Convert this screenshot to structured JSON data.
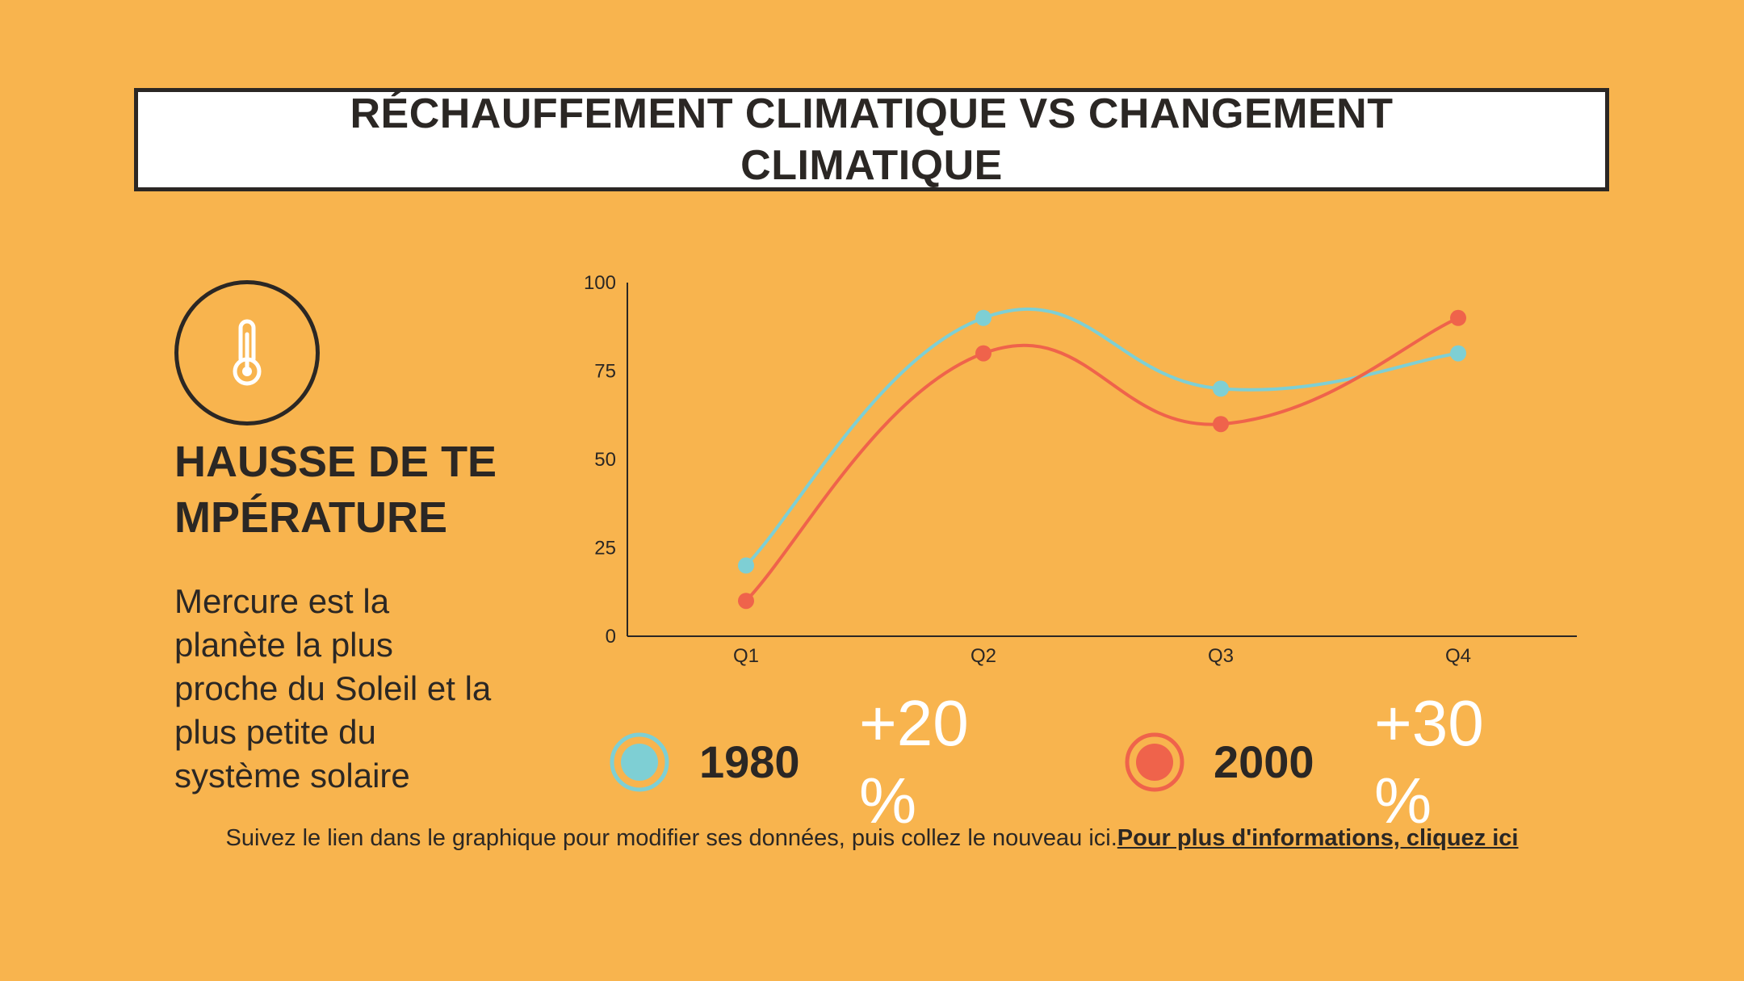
{
  "title": "RÉCHAUFFEMENT CLIMATIQUE VS CHANGEMENT CLIMATIQUE",
  "left": {
    "icon": "thermometer-icon",
    "heading": "HAUSSE DE TEMPÉRATURE",
    "description": "Mercure est la planète la plus proche du Soleil et la plus petite du système solaire"
  },
  "legend": [
    {
      "year": "1980",
      "change": "+20 %",
      "color": "#7ecfd4"
    },
    {
      "year": "2000",
      "change": "+30 %",
      "color": "#ef634b"
    }
  ],
  "footer": {
    "text": "Suivez le lien dans le graphique pour modifier ses données, puis collez le nouveau ici.",
    "link": "Pour plus d'informations, cliquez ici"
  },
  "chart_data": {
    "type": "line",
    "categories": [
      "Q1",
      "Q2",
      "Q3",
      "Q4"
    ],
    "series": [
      {
        "name": "1980",
        "values": [
          20,
          90,
          70,
          80
        ],
        "color": "#7ecfd4"
      },
      {
        "name": "2000",
        "values": [
          10,
          80,
          60,
          90
        ],
        "color": "#ef634b"
      }
    ],
    "ylim": [
      0,
      100
    ],
    "yticks": [
      "0",
      "25",
      "50",
      "75",
      "100"
    ],
    "smooth": true,
    "grid": false,
    "legend": "bottom"
  }
}
